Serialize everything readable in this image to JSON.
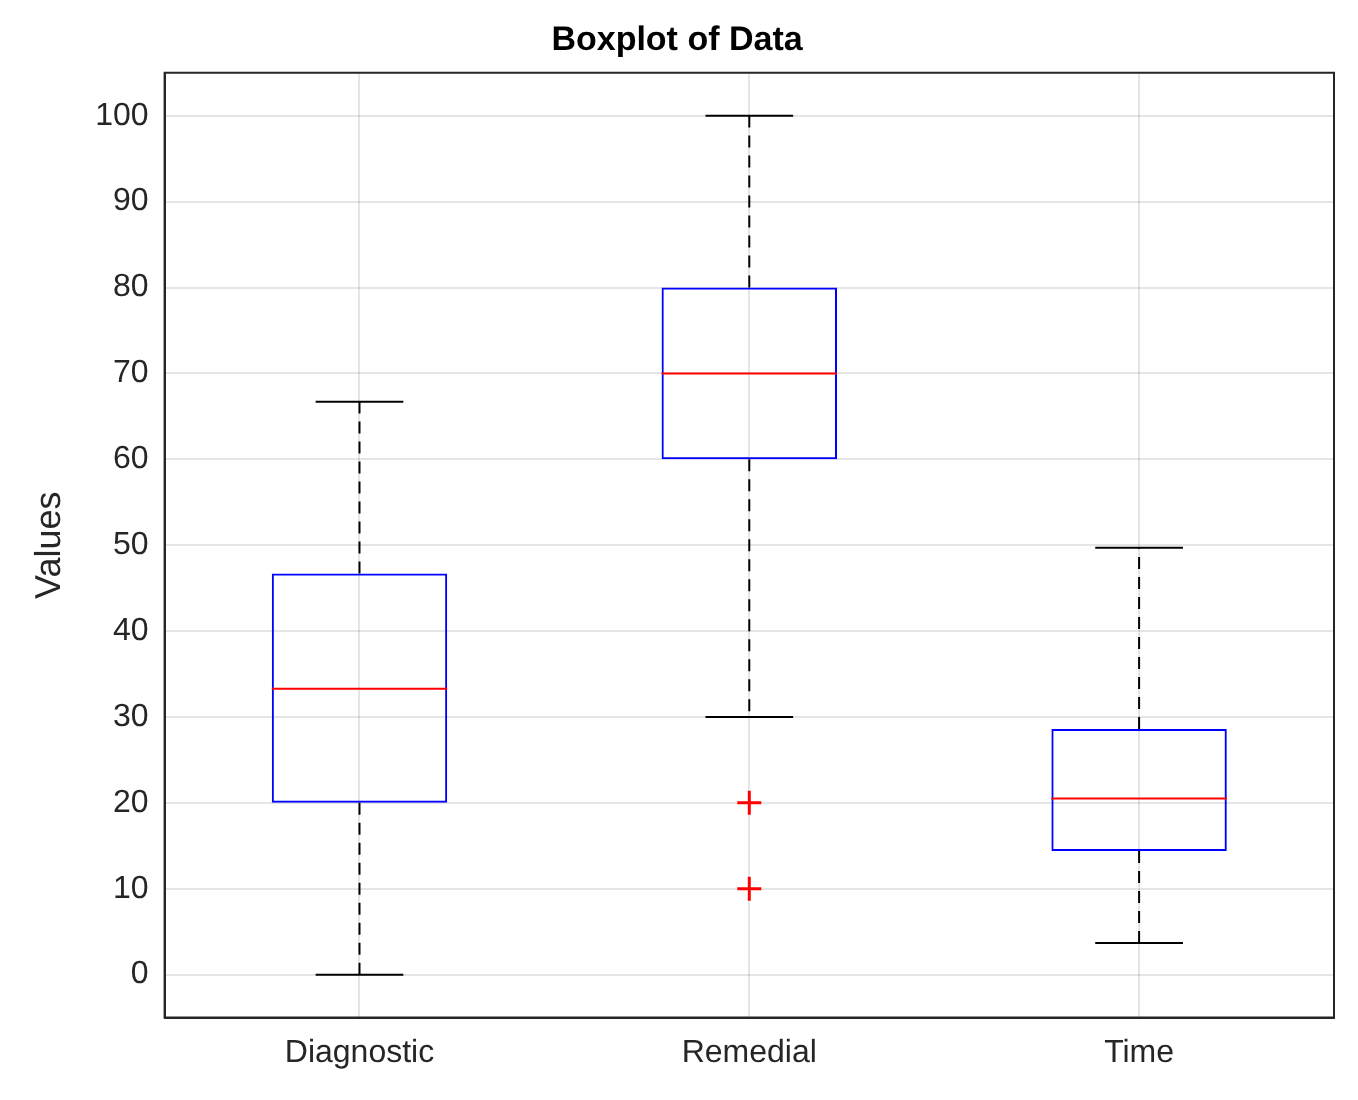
{
  "chart_data": {
    "type": "box",
    "title": "Boxplot of Data",
    "ylabel": "Values",
    "categories": [
      "Diagnostic",
      "Remedial",
      "Time"
    ],
    "color": "#0000ff",
    "boxes": [
      {
        "low": 0,
        "q1": 20,
        "median": 33.3,
        "q3": 46.7,
        "high": 66.7
      },
      {
        "low": 30,
        "q1": 60,
        "median": 70,
        "q3": 80,
        "high": 100,
        "outliers": [
          20,
          10
        ]
      },
      {
        "low": 3.7,
        "q1": 14.4,
        "median": 20.5,
        "q3": 28.6,
        "high": 49.7
      }
    ],
    "ylim": [
      -5,
      105
    ],
    "yticks": [
      0,
      10,
      20,
      30,
      40,
      50,
      60,
      70,
      80,
      90,
      100
    ],
    "grid": true
  }
}
